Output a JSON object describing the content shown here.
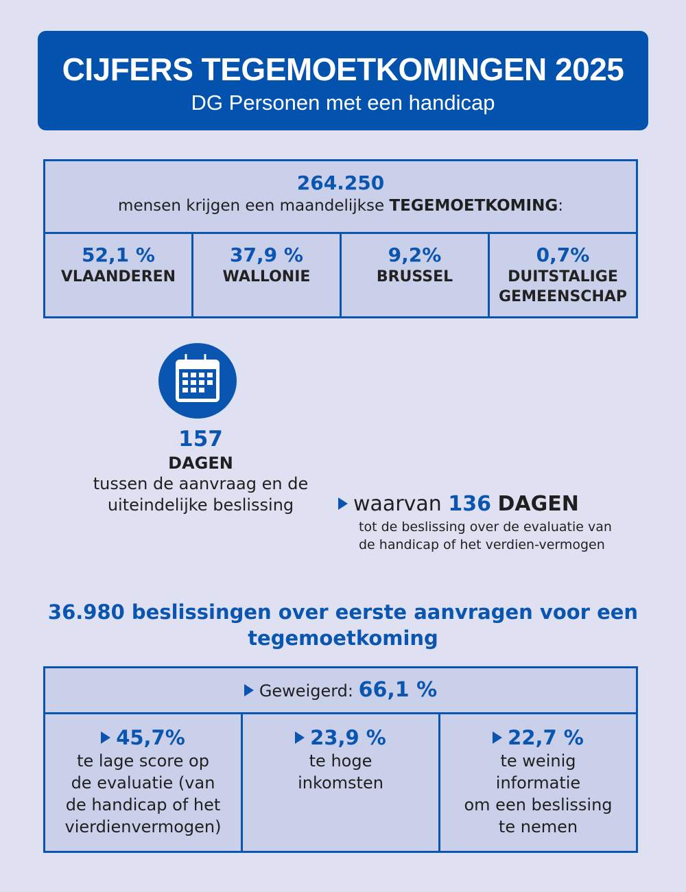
{
  "header": {
    "title": "CIJFERS TEGEMOETKOMINGEN 2025",
    "subtitle": "DG Personen met een handicap"
  },
  "beneficiaries": {
    "total": "264.250",
    "description_prefix": "mensen krijgen een maandelijkse",
    "description_bold": "TEGEMOETKOMING",
    "description_suffix": ":",
    "regions": [
      {
        "percent": "52,1 %",
        "name": "VLAANDEREN"
      },
      {
        "percent": "37,9 %",
        "name": "WALLONIE"
      },
      {
        "percent": "9,2%",
        "name": "BRUSSEL"
      },
      {
        "percent": "0,7%",
        "name": "DUITSTALIGE GEMEENSCHAP"
      }
    ]
  },
  "duration": {
    "icon": "calendar-icon",
    "total_days": "157",
    "unit": "DAGEN",
    "description": "tussen de aanvraag en de uiteindelijke beslissing",
    "sub_prefix": "waarvan",
    "sub_days": "136",
    "sub_unit": "DAGEN",
    "sub_description": "tot de beslissing over de evaluatie van de handicap of het verdien-vermogen"
  },
  "decisions": {
    "title": "36.980 beslissingen over eerste aanvragen voor een tegemoetkoming",
    "refused_label": "Geweigerd:",
    "refused_percent": "66,1 %",
    "reasons": [
      {
        "percent": "45,7%",
        "description": "te lage score op\nde evaluatie (van\nde handicap of het\nvierdienvermogen)"
      },
      {
        "percent": "23,9 %",
        "description": "te hoge\ninkomsten"
      },
      {
        "percent": "22,7 %",
        "description": "te weinig\ninformatie\nom een beslissing\nte nemen"
      }
    ]
  },
  "colors": {
    "primary": "#0353ae",
    "accent": "#0a55b0",
    "background": "#dfe0f2",
    "panel": "#cbd0ea"
  }
}
